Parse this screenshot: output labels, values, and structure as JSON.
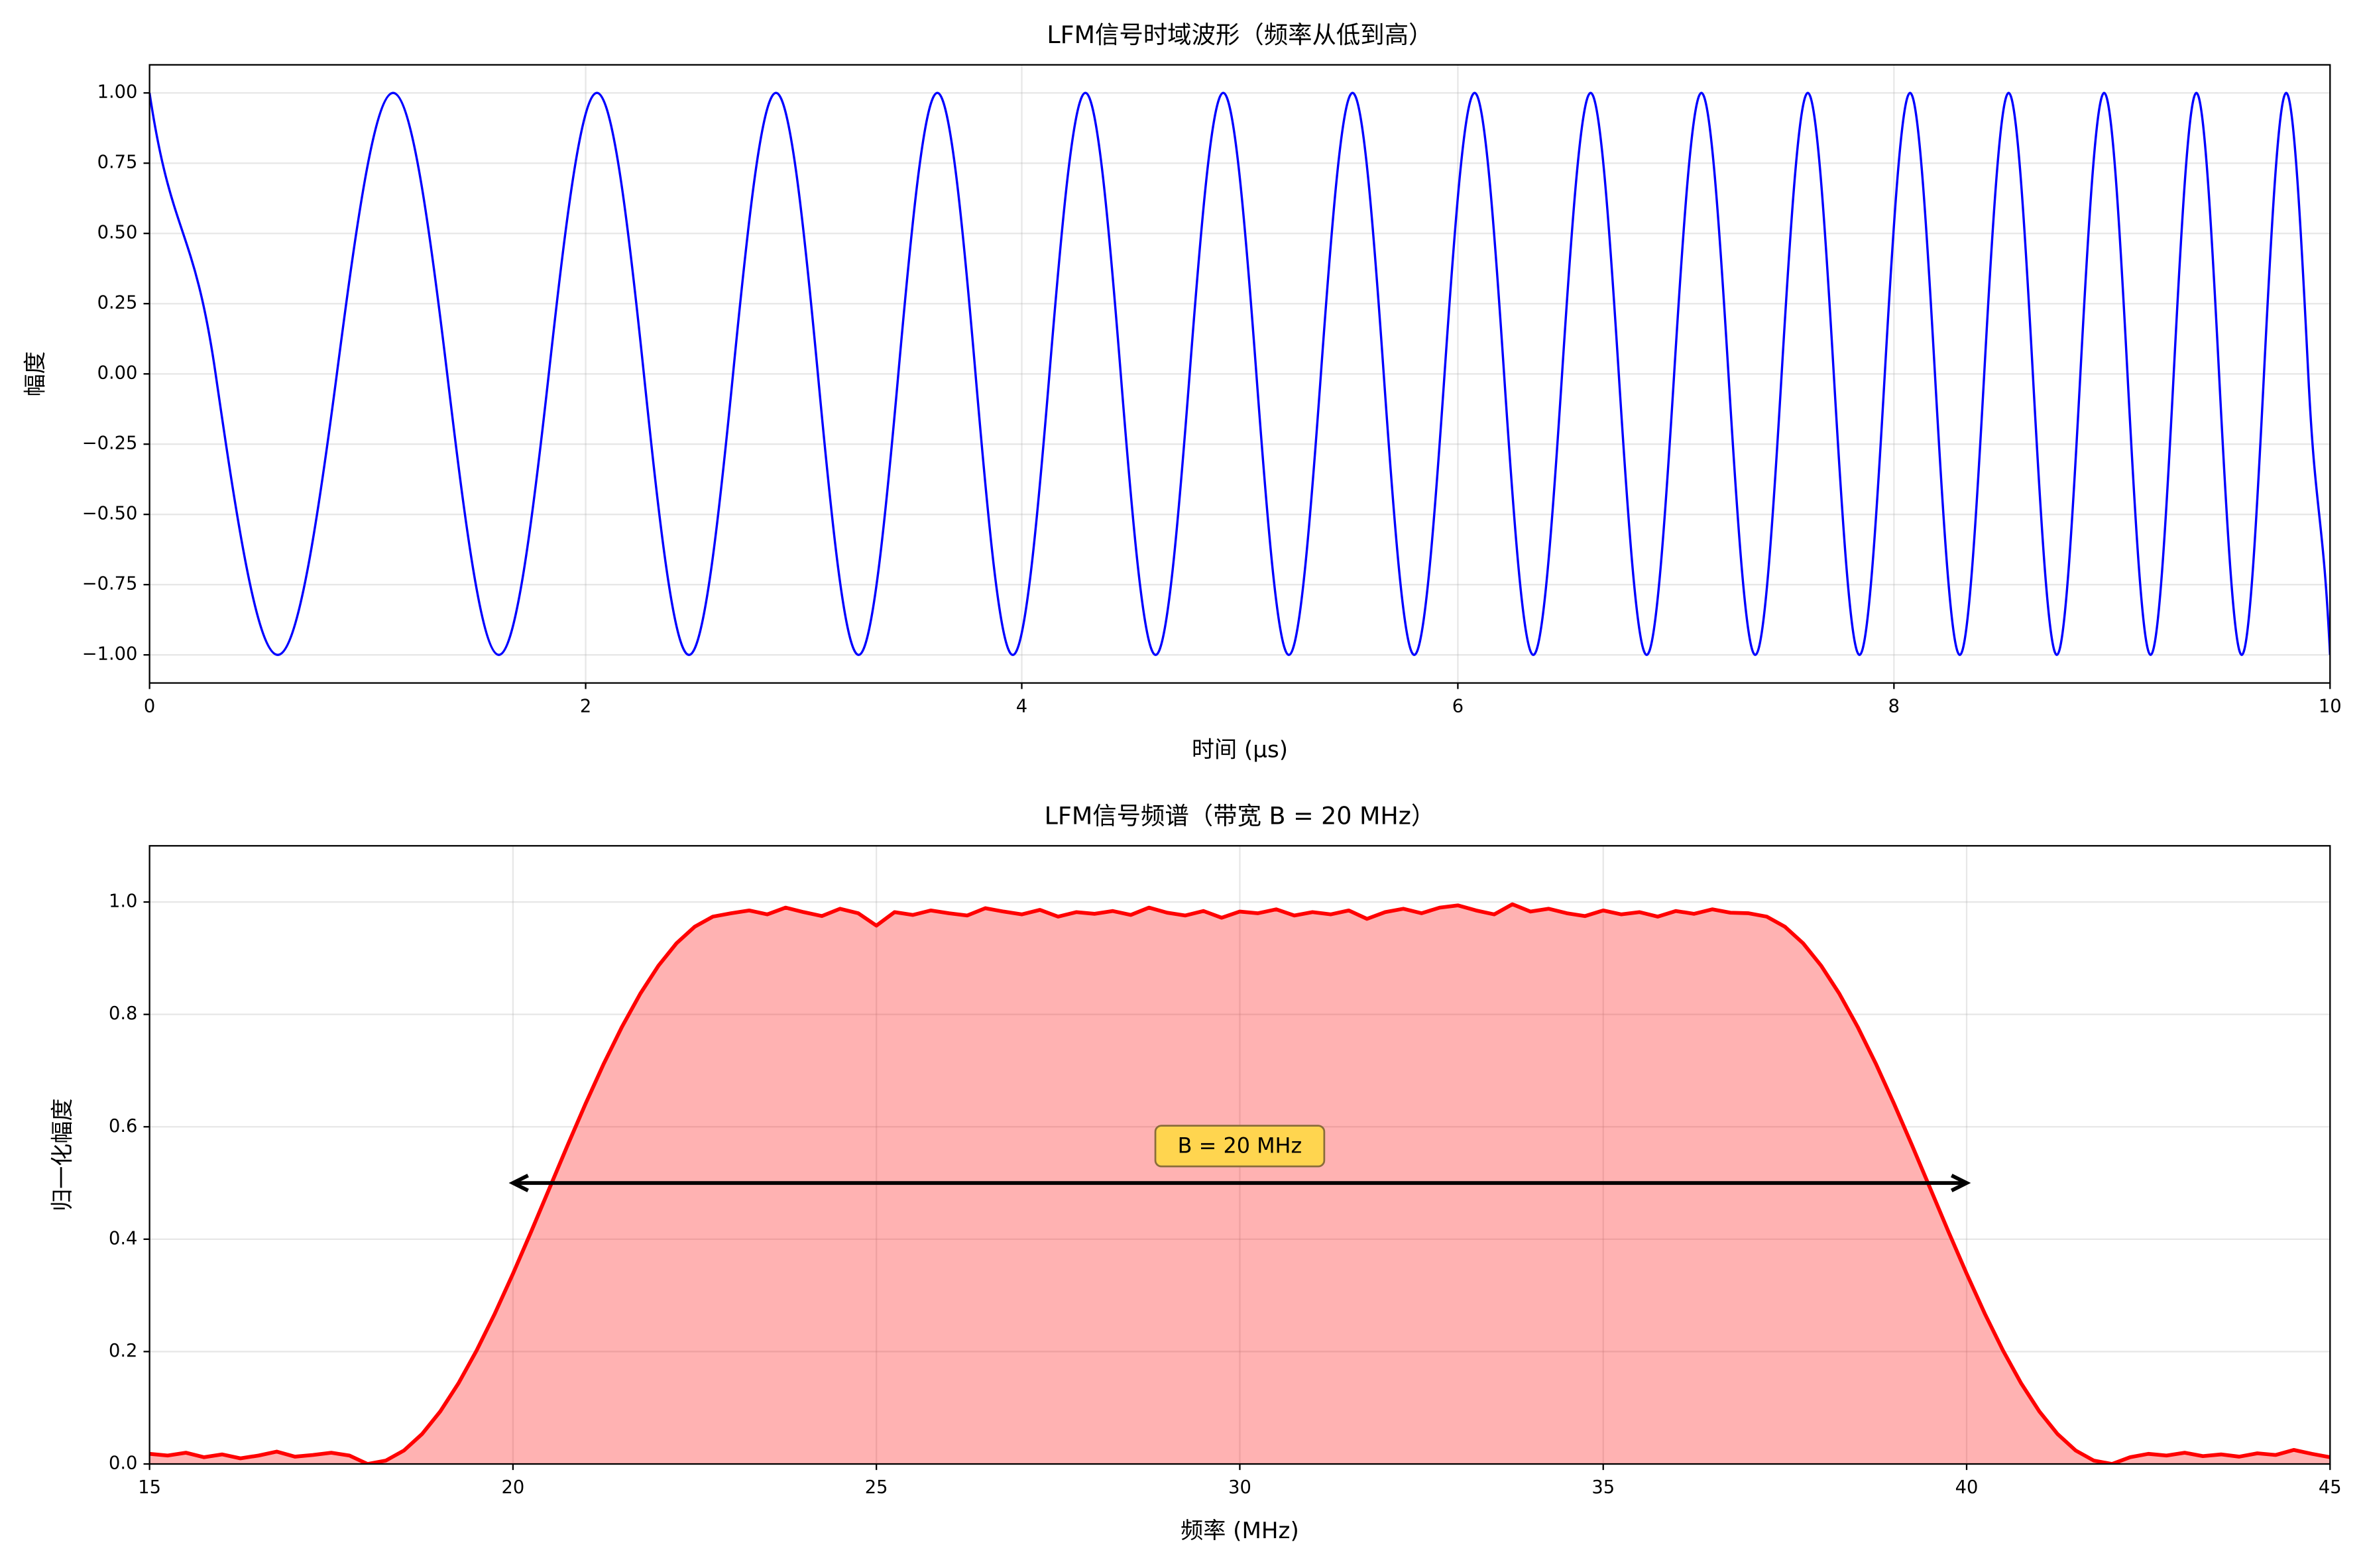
{
  "chart_data": [
    {
      "type": "line",
      "title": "LFM信号时域波形（频率从低到高）",
      "x_label": "时间 (μs)",
      "y_label": "幅度",
      "color": "#0000ff",
      "grid": true,
      "xlim": [
        0,
        10
      ],
      "ylim": [
        -1.1,
        1.1
      ],
      "xticks": [
        0,
        2,
        4,
        6,
        8,
        10
      ],
      "yticks": [
        {
          "value": 1,
          "label": "1.00"
        },
        0.75,
        {
          "value": 0.5,
          "label": "0.50"
        },
        0.25,
        {
          "value": 0,
          "label": "0.00"
        },
        {
          "value": -0.25,
          "label": "−0.25"
        },
        {
          "value": -0.5,
          "label": "−0.50"
        },
        {
          "value": -0.75,
          "label": "−0.75"
        },
        {
          "value": -1,
          "label": "−1.00"
        }
      ],
      "x": [
        0,
        0.303,
        0.588,
        0.859,
        1.117,
        1.365,
        1.602,
        1.831,
        2.052,
        2.267,
        2.474,
        2.676,
        2.873,
        3.065,
        3.252,
        3.434,
        3.613,
        3.788,
        3.959,
        4.127,
        4.292,
        4.454,
        4.614,
        4.77,
        4.924,
        5.076,
        5.225,
        5.372,
        5.517,
        5.66,
        5.8,
        5.939,
        6.077,
        6.212,
        6.346,
        6.478,
        6.609,
        6.738,
        6.866,
        6.992,
        7.117,
        7.241,
        7.364,
        7.485,
        7.605,
        7.724,
        7.842,
        7.958,
        8.074,
        8.188,
        8.302,
        8.414,
        8.526,
        8.637,
        8.747,
        8.855,
        8.964,
        9.071,
        9.177,
        9.283,
        9.387,
        9.491,
        9.595,
        9.697,
        9.799,
        9.9,
        10
      ],
      "values": [
        1,
        0,
        -1,
        0,
        1,
        0,
        -1,
        0,
        1,
        0,
        -1,
        0,
        1,
        0,
        -1,
        0,
        1,
        0,
        -1,
        0,
        1,
        0,
        -1,
        0,
        1,
        0,
        -1,
        0,
        1,
        0,
        -1,
        0,
        1,
        0,
        -1,
        0,
        1,
        0,
        -1,
        0,
        1,
        0,
        -1,
        0,
        1,
        0,
        -1,
        0,
        1,
        0,
        -1,
        0,
        1,
        0,
        -1,
        0,
        1,
        0,
        -1,
        0,
        1,
        0,
        -1,
        0,
        1,
        0,
        -1
      ]
    },
    {
      "type": "area",
      "title": "LFM信号频谱（带宽 B = 20 MHz）",
      "x_label": "频率 (MHz)",
      "y_label": "归一化幅度",
      "color": "#ff0000",
      "grid": true,
      "xlim": [
        15,
        45
      ],
      "ylim": [
        0,
        1.1
      ],
      "xticks": [
        15,
        20,
        25,
        30,
        35,
        40,
        45
      ],
      "yticks": [
        {
          "value": 0,
          "label": "0.0"
        },
        0.2,
        0.4,
        0.6,
        0.8,
        {
          "value": 1,
          "label": "1.0"
        }
      ],
      "annotation": {
        "text": "B = 20 MHz",
        "x": [
          20,
          40
        ],
        "y": 0.5
      },
      "x": [
        15,
        15.25,
        15.5,
        15.75,
        16,
        16.25,
        16.5,
        16.75,
        17,
        17.25,
        17.5,
        17.75,
        18,
        18.25,
        18.5,
        18.75,
        19,
        19.25,
        19.5,
        19.75,
        20,
        20.25,
        20.5,
        20.75,
        21,
        21.25,
        21.5,
        21.75,
        22,
        22.25,
        22.5,
        22.75,
        23,
        23.25,
        23.5,
        23.75,
        24,
        24.25,
        24.5,
        24.75,
        25,
        25.25,
        25.5,
        25.75,
        26,
        26.25,
        26.5,
        26.75,
        27,
        27.25,
        27.5,
        27.75,
        28,
        28.25,
        28.5,
        28.75,
        29,
        29.25,
        29.5,
        29.75,
        30,
        30.25,
        30.5,
        30.75,
        31,
        31.25,
        31.5,
        31.75,
        32,
        32.25,
        32.5,
        32.75,
        33,
        33.25,
        33.5,
        33.75,
        34,
        34.25,
        34.5,
        34.75,
        35,
        35.25,
        35.5,
        35.75,
        36,
        36.25,
        36.5,
        36.75,
        37,
        37.25,
        37.5,
        37.75,
        38,
        38.25,
        38.5,
        38.75,
        39,
        39.25,
        39.5,
        39.75,
        40,
        40.25,
        40.5,
        40.75,
        41,
        41.25,
        41.5,
        41.75,
        42,
        42.25,
        42.5,
        42.75,
        43,
        43.25,
        43.5,
        43.75,
        44,
        44.25,
        44.5,
        44.75,
        45
      ],
      "values": [
        0.018,
        0.015,
        0.02,
        0.012,
        0.017,
        0.01,
        0.015,
        0.022,
        0.013,
        0.016,
        0.02,
        0.015,
        0,
        0.006,
        0.024,
        0.0534,
        0.0936,
        0.1435,
        0.202,
        0.2675,
        0.3386,
        0.4133,
        0.49,
        0.5667,
        0.6414,
        0.7125,
        0.778,
        0.8365,
        0.8864,
        0.9266,
        0.956,
        0.974,
        0.98,
        0.985,
        0.978,
        0.99,
        0.982,
        0.975,
        0.988,
        0.98,
        0.958,
        0.982,
        0.977,
        0.985,
        0.98,
        0.976,
        0.989,
        0.983,
        0.978,
        0.986,
        0.974,
        0.982,
        0.979,
        0.984,
        0.977,
        0.99,
        0.981,
        0.976,
        0.984,
        0.972,
        0.983,
        0.98,
        0.987,
        0.976,
        0.982,
        0.978,
        0.985,
        0.97,
        0.982,
        0.988,
        0.98,
        0.99,
        0.994,
        0.985,
        0.978,
        0.996,
        0.983,
        0.988,
        0.98,
        0.975,
        0.985,
        0.978,
        0.982,
        0.974,
        0.984,
        0.979,
        0.987,
        0.981,
        0.98,
        0.974,
        0.956,
        0.9266,
        0.8864,
        0.8365,
        0.778,
        0.7125,
        0.6414,
        0.5667,
        0.49,
        0.4133,
        0.3386,
        0.2675,
        0.202,
        0.1435,
        0.0936,
        0.0534,
        0.024,
        0.006,
        0,
        0.012,
        0.018,
        0.015,
        0.02,
        0.014,
        0.017,
        0.013,
        0.019,
        0.016,
        0.025,
        0.018,
        0.012
      ]
    }
  ]
}
